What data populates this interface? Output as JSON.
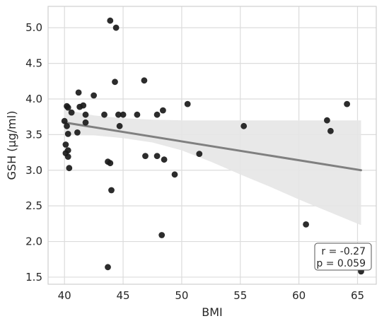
{
  "chart_data": {
    "type": "scatter",
    "title": "",
    "xlabel": "BMI",
    "ylabel": "GSH (µg/ml)",
    "xlim": [
      38.6,
      66.6
    ],
    "ylim": [
      1.4,
      5.3
    ],
    "xticks": [
      40,
      45,
      50,
      55,
      60,
      65
    ],
    "yticks": [
      1.5,
      2.0,
      2.5,
      3.0,
      3.5,
      4.0,
      4.5,
      5.0
    ],
    "ytick_labels": [
      "1.5",
      "2.0",
      "2.5",
      "3.0",
      "3.5",
      "4.0",
      "4.5",
      "5.0"
    ],
    "grid": true,
    "points": [
      {
        "x": 40.0,
        "y": 3.69
      },
      {
        "x": 40.1,
        "y": 3.36
      },
      {
        "x": 40.1,
        "y": 3.24
      },
      {
        "x": 40.2,
        "y": 3.62
      },
      {
        "x": 40.2,
        "y": 3.9
      },
      {
        "x": 40.3,
        "y": 3.88
      },
      {
        "x": 40.3,
        "y": 3.51
      },
      {
        "x": 40.3,
        "y": 3.28
      },
      {
        "x": 40.3,
        "y": 3.19
      },
      {
        "x": 40.4,
        "y": 3.03
      },
      {
        "x": 40.6,
        "y": 3.81
      },
      {
        "x": 41.1,
        "y": 3.53
      },
      {
        "x": 41.2,
        "y": 4.09
      },
      {
        "x": 41.3,
        "y": 3.89
      },
      {
        "x": 41.6,
        "y": 3.91
      },
      {
        "x": 41.8,
        "y": 3.67
      },
      {
        "x": 41.8,
        "y": 3.78
      },
      {
        "x": 42.5,
        "y": 4.05
      },
      {
        "x": 43.4,
        "y": 3.78
      },
      {
        "x": 43.7,
        "y": 1.64
      },
      {
        "x": 43.7,
        "y": 3.12
      },
      {
        "x": 43.9,
        "y": 5.1
      },
      {
        "x": 43.9,
        "y": 3.1
      },
      {
        "x": 44.0,
        "y": 2.72
      },
      {
        "x": 44.3,
        "y": 4.24
      },
      {
        "x": 44.4,
        "y": 5.0
      },
      {
        "x": 44.6,
        "y": 3.78
      },
      {
        "x": 44.7,
        "y": 3.62
      },
      {
        "x": 45.0,
        "y": 3.78
      },
      {
        "x": 46.2,
        "y": 3.78
      },
      {
        "x": 46.8,
        "y": 4.26
      },
      {
        "x": 46.9,
        "y": 3.2
      },
      {
        "x": 47.9,
        "y": 3.2
      },
      {
        "x": 47.9,
        "y": 3.78
      },
      {
        "x": 48.3,
        "y": 2.09
      },
      {
        "x": 48.4,
        "y": 3.84
      },
      {
        "x": 48.5,
        "y": 3.15
      },
      {
        "x": 49.4,
        "y": 2.94
      },
      {
        "x": 50.5,
        "y": 3.93
      },
      {
        "x": 51.5,
        "y": 3.23
      },
      {
        "x": 55.3,
        "y": 3.62
      },
      {
        "x": 60.6,
        "y": 2.24
      },
      {
        "x": 62.4,
        "y": 3.7
      },
      {
        "x": 62.7,
        "y": 3.55
      },
      {
        "x": 64.1,
        "y": 3.93
      },
      {
        "x": 65.3,
        "y": 1.58
      }
    ],
    "regression": {
      "x": [
        40.0,
        65.3
      ],
      "y": [
        3.67,
        3.0
      ]
    },
    "confidence_band": {
      "x": [
        40.0,
        42.5,
        45.0,
        47.5,
        50.0,
        52.5,
        55.0,
        57.5,
        60.0,
        62.5,
        65.3
      ],
      "upper": [
        3.85,
        3.77,
        3.73,
        3.71,
        3.7,
        3.7,
        3.7,
        3.7,
        3.7,
        3.7,
        3.7
      ],
      "lower": [
        3.49,
        3.49,
        3.45,
        3.39,
        3.28,
        3.12,
        2.94,
        2.77,
        2.59,
        2.42,
        2.23
      ]
    },
    "annotation": {
      "line1": "r = -0.27",
      "line2": "p = 0.059",
      "placement": "bottom-right"
    },
    "colors": {
      "points": "#1a1a1a",
      "line": "#808080",
      "band": "#e6e6e6",
      "grid": "#dcdcdc",
      "frame": "#cfcfcf"
    }
  }
}
